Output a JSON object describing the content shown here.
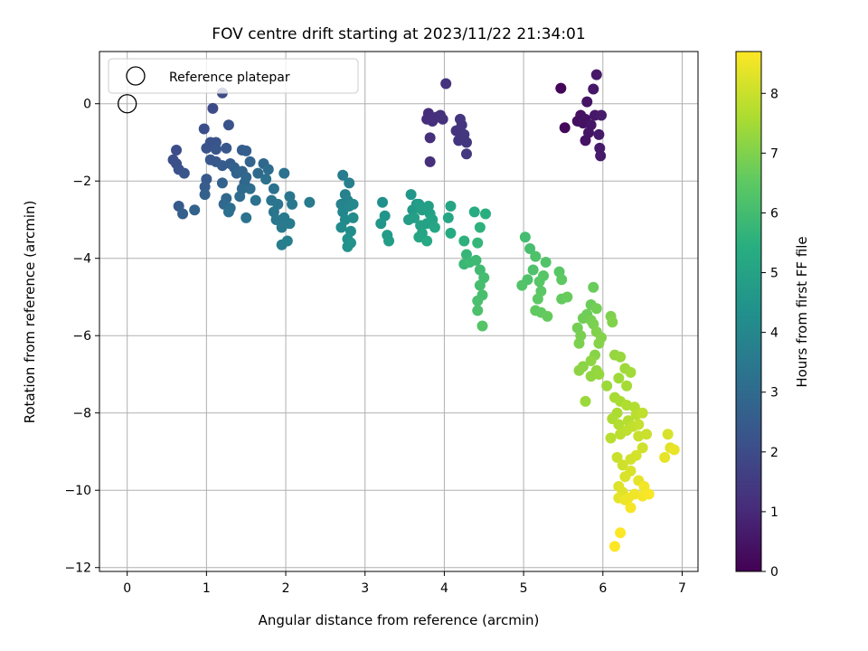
{
  "chart_data": {
    "type": "scatter",
    "title": "FOV centre drift starting at 2023/11/22 21:34:01",
    "xlabel": "Angular distance from reference (arcmin)",
    "ylabel": "Rotation from reference (arcmin)",
    "xlim": [
      -0.35,
      7.2
    ],
    "ylim": [
      -12.1,
      1.35
    ],
    "xticks": [
      0,
      1,
      2,
      3,
      4,
      5,
      6,
      7
    ],
    "yticks": [
      -12,
      -10,
      -8,
      -6,
      -4,
      -2,
      0
    ],
    "grid": true,
    "legend": {
      "position": "top-left",
      "entries": [
        "Reference platepar"
      ]
    },
    "colorbar": {
      "label": "Hours from first FF file",
      "colormap": "viridis",
      "range": [
        0,
        8.7
      ],
      "ticks": [
        0,
        1,
        2,
        3,
        4,
        5,
        6,
        7,
        8
      ]
    },
    "reference": {
      "x": 0,
      "y": 0
    },
    "series": [
      {
        "points": [
          [
            5.92,
            0.75
          ],
          [
            5.47,
            0.4
          ],
          [
            5.88,
            0.38
          ],
          [
            5.8,
            0.05
          ],
          [
            5.72,
            -0.3
          ],
          [
            5.78,
            -0.4
          ],
          [
            5.9,
            -0.3
          ],
          [
            5.98,
            -0.3
          ],
          [
            5.75,
            -0.5
          ],
          [
            5.68,
            -0.45
          ],
          [
            5.85,
            -0.55
          ],
          [
            5.52,
            -0.62
          ],
          [
            5.82,
            -0.75
          ],
          [
            5.95,
            -0.8
          ],
          [
            5.78,
            -0.95
          ],
          [
            5.96,
            -1.15
          ],
          [
            5.97,
            -1.35
          ],
          [
            4.02,
            0.52
          ],
          [
            3.8,
            -0.25
          ],
          [
            3.9,
            -0.35
          ],
          [
            3.78,
            -0.4
          ],
          [
            3.95,
            -0.3
          ],
          [
            3.85,
            -0.45
          ],
          [
            3.98,
            -0.4
          ],
          [
            4.2,
            -0.4
          ],
          [
            4.22,
            -0.55
          ],
          [
            4.15,
            -0.7
          ],
          [
            4.25,
            -0.8
          ],
          [
            4.18,
            -0.95
          ],
          [
            4.28,
            -1.0
          ],
          [
            3.82,
            -0.88
          ],
          [
            4.28,
            -1.3
          ],
          [
            3.82,
            -1.5
          ],
          [
            1.2,
            0.28
          ],
          [
            1.08,
            -0.12
          ],
          [
            1.28,
            -0.55
          ],
          [
            0.97,
            -0.65
          ],
          [
            1.05,
            -1.0
          ],
          [
            1.12,
            -1.0
          ],
          [
            1.0,
            -1.15
          ],
          [
            1.12,
            -1.18
          ],
          [
            1.25,
            -1.15
          ],
          [
            0.62,
            -1.2
          ],
          [
            1.45,
            -1.2
          ],
          [
            1.5,
            -1.22
          ],
          [
            0.58,
            -1.45
          ],
          [
            0.62,
            -1.55
          ],
          [
            0.65,
            -1.7
          ],
          [
            0.72,
            -1.8
          ],
          [
            1.05,
            -1.45
          ],
          [
            1.12,
            -1.5
          ],
          [
            1.2,
            -1.6
          ],
          [
            1.3,
            -1.55
          ],
          [
            1.35,
            -1.65
          ],
          [
            1.38,
            -1.8
          ],
          [
            1.45,
            -1.75
          ],
          [
            1.5,
            -1.9
          ],
          [
            1.48,
            -2.05
          ],
          [
            1.55,
            -2.2
          ],
          [
            1.42,
            -2.4
          ],
          [
            1.45,
            -2.2
          ],
          [
            1.0,
            -1.95
          ],
          [
            0.98,
            -2.15
          ],
          [
            0.98,
            -2.35
          ],
          [
            1.2,
            -2.05
          ],
          [
            1.25,
            -2.45
          ],
          [
            1.3,
            -2.7
          ],
          [
            1.22,
            -2.6
          ],
          [
            1.28,
            -2.8
          ],
          [
            0.65,
            -2.65
          ],
          [
            0.7,
            -2.85
          ],
          [
            0.85,
            -2.75
          ],
          [
            1.5,
            -2.95
          ],
          [
            1.62,
            -2.5
          ],
          [
            1.55,
            -1.5
          ],
          [
            1.65,
            -1.8
          ],
          [
            1.72,
            -1.55
          ],
          [
            1.78,
            -1.7
          ],
          [
            1.75,
            -1.95
          ],
          [
            1.85,
            -2.2
          ],
          [
            1.98,
            -1.8
          ],
          [
            1.82,
            -2.5
          ],
          [
            1.9,
            -2.6
          ],
          [
            1.85,
            -2.8
          ],
          [
            1.88,
            -3.0
          ],
          [
            1.98,
            -2.95
          ],
          [
            2.05,
            -2.4
          ],
          [
            2.08,
            -2.6
          ],
          [
            2.05,
            -3.1
          ],
          [
            1.95,
            -3.2
          ],
          [
            2.02,
            -3.55
          ],
          [
            1.95,
            -3.65
          ],
          [
            2.3,
            -2.55
          ],
          [
            2.72,
            -1.85
          ],
          [
            2.8,
            -2.05
          ],
          [
            2.75,
            -2.35
          ],
          [
            2.78,
            -2.5
          ],
          [
            2.7,
            -2.6
          ],
          [
            2.8,
            -2.65
          ],
          [
            2.72,
            -2.8
          ],
          [
            2.75,
            -3.0
          ],
          [
            2.7,
            -3.2
          ],
          [
            2.85,
            -2.6
          ],
          [
            2.85,
            -2.95
          ],
          [
            2.82,
            -3.3
          ],
          [
            2.78,
            -3.5
          ],
          [
            2.78,
            -3.7
          ],
          [
            2.82,
            -3.6
          ],
          [
            3.22,
            -2.55
          ],
          [
            3.25,
            -2.9
          ],
          [
            3.2,
            -3.1
          ],
          [
            3.28,
            -3.4
          ],
          [
            3.3,
            -3.55
          ],
          [
            3.58,
            -2.35
          ],
          [
            3.6,
            -2.75
          ],
          [
            3.62,
            -2.95
          ],
          [
            3.55,
            -3.0
          ],
          [
            3.68,
            -2.6
          ],
          [
            3.7,
            -3.15
          ],
          [
            3.72,
            -3.35
          ],
          [
            3.68,
            -3.45
          ],
          [
            3.78,
            -3.55
          ],
          [
            3.65,
            -2.6
          ],
          [
            3.72,
            -2.75
          ],
          [
            3.8,
            -2.65
          ],
          [
            3.82,
            -2.85
          ],
          [
            3.85,
            -3.0
          ],
          [
            3.78,
            -3.1
          ],
          [
            3.88,
            -3.2
          ],
          [
            4.08,
            -2.65
          ],
          [
            4.05,
            -2.95
          ],
          [
            4.08,
            -3.35
          ],
          [
            4.25,
            -3.55
          ],
          [
            4.38,
            -2.8
          ],
          [
            4.52,
            -2.85
          ],
          [
            4.42,
            -3.6
          ],
          [
            4.45,
            -3.2
          ],
          [
            4.28,
            -3.9
          ],
          [
            4.25,
            -4.15
          ],
          [
            4.32,
            -4.1
          ],
          [
            4.4,
            -4.05
          ],
          [
            4.45,
            -4.3
          ],
          [
            4.5,
            -4.5
          ],
          [
            4.45,
            -4.7
          ],
          [
            4.48,
            -4.95
          ],
          [
            4.42,
            -5.1
          ],
          [
            4.42,
            -5.35
          ],
          [
            4.48,
            -5.75
          ],
          [
            5.02,
            -3.45
          ],
          [
            5.08,
            -3.75
          ],
          [
            5.15,
            -3.95
          ],
          [
            5.12,
            -4.3
          ],
          [
            5.05,
            -4.55
          ],
          [
            4.98,
            -4.7
          ],
          [
            5.2,
            -4.6
          ],
          [
            5.22,
            -4.85
          ],
          [
            5.25,
            -4.45
          ],
          [
            5.28,
            -4.1
          ],
          [
            5.18,
            -5.05
          ],
          [
            5.15,
            -5.35
          ],
          [
            5.22,
            -5.4
          ],
          [
            5.3,
            -5.5
          ],
          [
            5.45,
            -4.35
          ],
          [
            5.48,
            -4.55
          ],
          [
            5.55,
            -5.0
          ],
          [
            5.48,
            -5.05
          ]
        ]
      },
      {
        "points": [
          [
            5.88,
            -4.75
          ],
          [
            5.85,
            -5.2
          ],
          [
            5.92,
            -5.3
          ],
          [
            5.8,
            -5.45
          ],
          [
            5.75,
            -5.55
          ],
          [
            5.68,
            -5.8
          ],
          [
            5.72,
            -6.0
          ],
          [
            5.7,
            -6.2
          ],
          [
            5.85,
            -5.6
          ],
          [
            5.88,
            -5.7
          ],
          [
            5.92,
            -5.9
          ],
          [
            5.98,
            -6.05
          ],
          [
            5.95,
            -6.2
          ],
          [
            6.1,
            -5.5
          ],
          [
            6.12,
            -5.65
          ],
          [
            5.9,
            -6.5
          ],
          [
            5.85,
            -6.65
          ],
          [
            5.75,
            -6.8
          ],
          [
            5.7,
            -6.9
          ],
          [
            5.92,
            -6.9
          ],
          [
            5.85,
            -7.05
          ],
          [
            5.95,
            -7.0
          ],
          [
            6.05,
            -7.3
          ],
          [
            5.78,
            -7.7
          ],
          [
            6.15,
            -6.5
          ],
          [
            6.22,
            -6.55
          ],
          [
            6.28,
            -6.85
          ],
          [
            6.35,
            -6.95
          ],
          [
            6.2,
            -7.1
          ],
          [
            6.3,
            -7.3
          ],
          [
            6.15,
            -7.6
          ],
          [
            6.22,
            -7.7
          ],
          [
            6.3,
            -7.8
          ],
          [
            6.4,
            -7.85
          ],
          [
            6.18,
            -8.0
          ],
          [
            6.12,
            -8.15
          ],
          [
            6.2,
            -8.3
          ],
          [
            6.32,
            -8.2
          ],
          [
            6.42,
            -8.05
          ],
          [
            6.1,
            -8.65
          ],
          [
            6.22,
            -8.55
          ],
          [
            6.3,
            -8.45
          ]
        ]
      },
      {
        "points": [
          [
            6.38,
            -8.35
          ],
          [
            6.45,
            -8.6
          ],
          [
            6.55,
            -8.55
          ],
          [
            6.5,
            -8.9
          ],
          [
            6.42,
            -9.1
          ],
          [
            6.35,
            -9.2
          ],
          [
            6.25,
            -9.35
          ],
          [
            6.35,
            -9.5
          ],
          [
            6.18,
            -9.15
          ],
          [
            6.28,
            -9.65
          ],
          [
            6.45,
            -9.75
          ],
          [
            6.52,
            -9.9
          ],
          [
            6.82,
            -8.55
          ],
          [
            6.85,
            -8.9
          ],
          [
            6.9,
            -8.95
          ],
          [
            6.78,
            -9.15
          ],
          [
            6.2,
            -9.9
          ],
          [
            6.25,
            -10.05
          ],
          [
            6.2,
            -10.2
          ],
          [
            6.28,
            -10.25
          ],
          [
            6.32,
            -10.2
          ],
          [
            6.4,
            -10.1
          ],
          [
            6.5,
            -10.15
          ],
          [
            6.58,
            -10.1
          ],
          [
            6.35,
            -10.45
          ],
          [
            6.22,
            -11.1
          ],
          [
            6.15,
            -11.45
          ],
          [
            6.45,
            -8.3
          ],
          [
            6.5,
            -8.0
          ]
        ]
      }
    ]
  }
}
